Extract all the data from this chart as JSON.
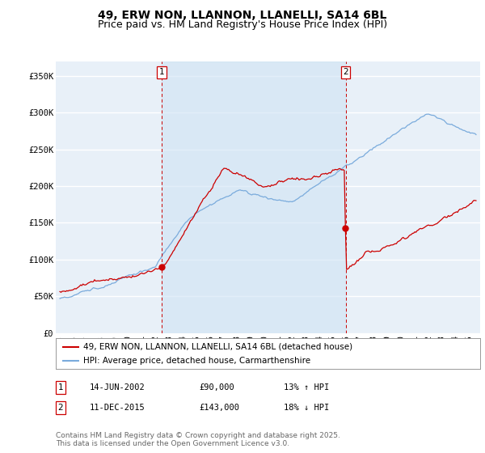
{
  "title": "49, ERW NON, LLANNON, LLANELLI, SA14 6BL",
  "subtitle": "Price paid vs. HM Land Registry's House Price Index (HPI)",
  "ylim": [
    0,
    370000
  ],
  "yticks": [
    0,
    50000,
    100000,
    150000,
    200000,
    250000,
    300000,
    350000
  ],
  "ytick_labels": [
    "£0",
    "£50K",
    "£100K",
    "£150K",
    "£200K",
    "£250K",
    "£300K",
    "£350K"
  ],
  "sale1_date_num": 2002.45,
  "sale1_date_label": "14-JUN-2002",
  "sale1_price": 90000,
  "sale1_hpi_text": "13% ↑ HPI",
  "sale2_date_num": 2015.94,
  "sale2_date_label": "11-DEC-2015",
  "sale2_price": 143000,
  "sale2_hpi_text": "18% ↓ HPI",
  "line_color_property": "#cc0000",
  "line_color_hpi": "#7aabdc",
  "dashed_color": "#cc0000",
  "background_color": "#e8f0f8",
  "shade_color": "#d0e4f4",
  "grid_color": "#ffffff",
  "legend_label_property": "49, ERW NON, LLANNON, LLANELLI, SA14 6BL (detached house)",
  "legend_label_hpi": "HPI: Average price, detached house, Carmarthenshire",
  "footnote": "Contains HM Land Registry data © Crown copyright and database right 2025.\nThis data is licensed under the Open Government Licence v3.0.",
  "title_fontsize": 10,
  "subtitle_fontsize": 9,
  "tick_fontsize": 7.5,
  "legend_fontsize": 7.5,
  "footnote_fontsize": 6.5
}
